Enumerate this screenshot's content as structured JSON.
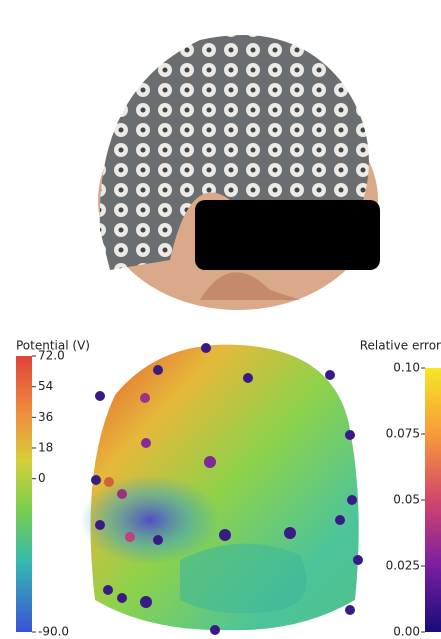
{
  "potential_colorbar": {
    "title": "Potential (V)",
    "lim": [
      -90,
      72
    ],
    "ticks": [
      {
        "value": 72,
        "label": "72.0"
      },
      54,
      36,
      18,
      0,
      {
        "value": -90,
        "label": "-90.0"
      }
    ]
  },
  "error_colorbar": {
    "title": "Relative error",
    "lim": [
      0,
      0.1
    ],
    "ticks": [
      {
        "value": 0.1,
        "label": "0.10"
      },
      0.075,
      0.05,
      0.025,
      {
        "value": 0,
        "label": "0.00"
      }
    ]
  }
}
